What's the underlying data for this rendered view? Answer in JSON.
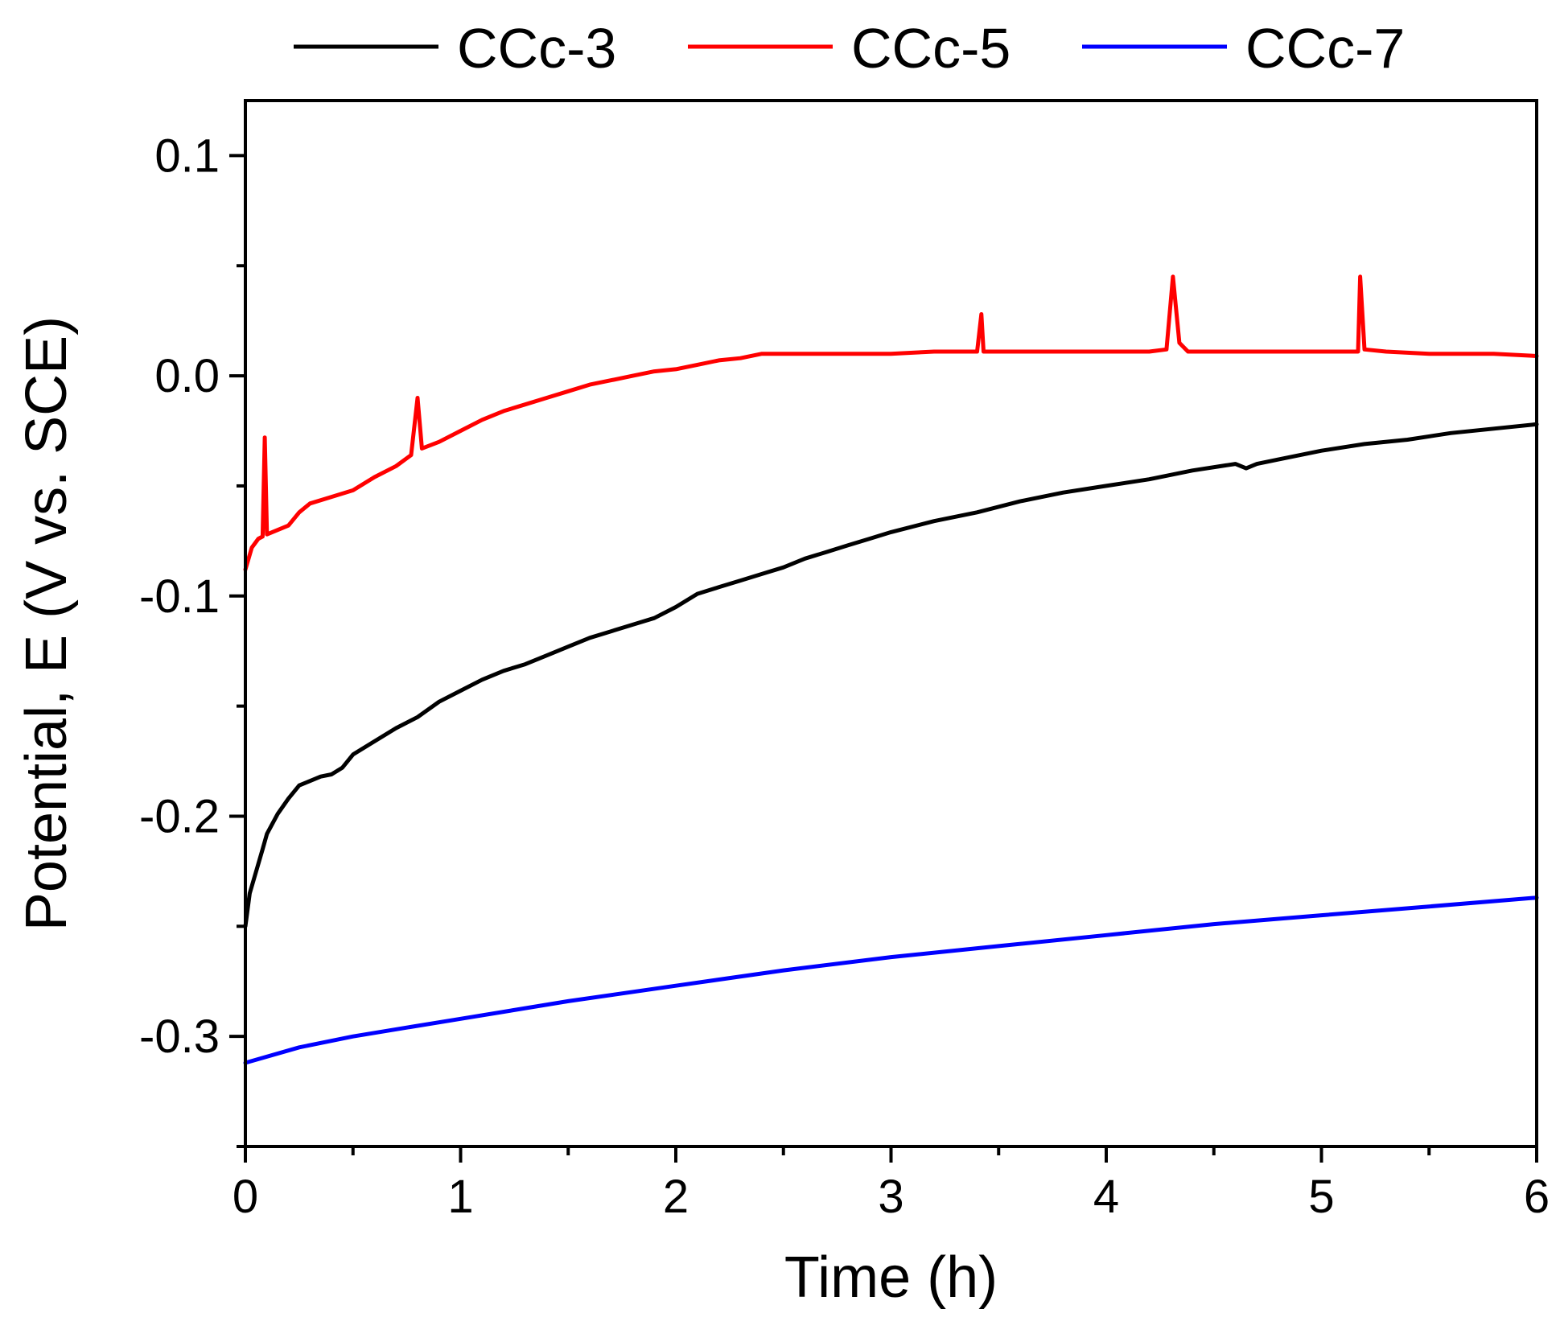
{
  "chart_data": {
    "type": "line",
    "xlabel": "Time (h)",
    "ylabel": "Potential, E (V vs. SCE)",
    "xlim": [
      0,
      6
    ],
    "ylim": [
      -0.35,
      0.125
    ],
    "xticks": [
      "0",
      "1",
      "2",
      "3",
      "4",
      "5",
      "6"
    ],
    "yticks": [
      "0.1",
      "0.0",
      "-0.1",
      "-0.2",
      "-0.3"
    ],
    "ytick_values": [
      0.1,
      0.0,
      -0.1,
      -0.2,
      -0.3
    ],
    "xtick_values": [
      0,
      1,
      2,
      3,
      4,
      5,
      6
    ],
    "grid": false,
    "legend_position": "top",
    "series": [
      {
        "name": "CCc-3",
        "color": "#000000",
        "x": [
          0.0,
          0.02,
          0.05,
          0.08,
          0.1,
          0.15,
          0.2,
          0.25,
          0.3,
          0.35,
          0.4,
          0.45,
          0.5,
          0.6,
          0.7,
          0.8,
          0.9,
          1.0,
          1.1,
          1.2,
          1.3,
          1.4,
          1.5,
          1.6,
          1.7,
          1.8,
          1.9,
          2.0,
          2.1,
          2.2,
          2.3,
          2.4,
          2.5,
          2.6,
          2.7,
          2.8,
          2.9,
          3.0,
          3.2,
          3.4,
          3.6,
          3.8,
          4.0,
          4.2,
          4.4,
          4.6,
          4.65,
          4.7,
          4.8,
          5.0,
          5.2,
          5.4,
          5.6,
          5.8,
          6.0
        ],
        "y": [
          -0.25,
          -0.235,
          -0.225,
          -0.215,
          -0.208,
          -0.199,
          -0.192,
          -0.186,
          -0.184,
          -0.182,
          -0.181,
          -0.178,
          -0.172,
          -0.166,
          -0.16,
          -0.155,
          -0.148,
          -0.143,
          -0.138,
          -0.134,
          -0.131,
          -0.127,
          -0.123,
          -0.119,
          -0.116,
          -0.113,
          -0.11,
          -0.105,
          -0.099,
          -0.096,
          -0.093,
          -0.09,
          -0.087,
          -0.083,
          -0.08,
          -0.077,
          -0.074,
          -0.071,
          -0.066,
          -0.062,
          -0.057,
          -0.053,
          -0.05,
          -0.047,
          -0.043,
          -0.04,
          -0.042,
          -0.04,
          -0.038,
          -0.034,
          -0.031,
          -0.029,
          -0.026,
          -0.024,
          -0.022
        ]
      },
      {
        "name": "CCc-5",
        "color": "#ff0000",
        "x": [
          0.0,
          0.03,
          0.06,
          0.08,
          0.09,
          0.1,
          0.15,
          0.2,
          0.25,
          0.3,
          0.4,
          0.5,
          0.6,
          0.7,
          0.77,
          0.8,
          0.82,
          0.9,
          1.0,
          1.1,
          1.2,
          1.3,
          1.4,
          1.5,
          1.6,
          1.7,
          1.8,
          1.9,
          2.0,
          2.1,
          2.2,
          2.3,
          2.4,
          2.5,
          2.7,
          3.0,
          3.2,
          3.4,
          3.42,
          3.43,
          3.45,
          3.6,
          3.8,
          4.0,
          4.2,
          4.28,
          4.31,
          4.34,
          4.38,
          4.5,
          4.8,
          5.1,
          5.17,
          5.18,
          5.2,
          5.3,
          5.5,
          5.8,
          6.0
        ],
        "y": [
          -0.088,
          -0.078,
          -0.074,
          -0.073,
          -0.028,
          -0.072,
          -0.07,
          -0.068,
          -0.062,
          -0.058,
          -0.055,
          -0.052,
          -0.046,
          -0.041,
          -0.036,
          -0.01,
          -0.033,
          -0.03,
          -0.025,
          -0.02,
          -0.016,
          -0.013,
          -0.01,
          -0.007,
          -0.004,
          -0.002,
          0.0,
          0.002,
          0.003,
          0.005,
          0.007,
          0.008,
          0.01,
          0.01,
          0.01,
          0.01,
          0.011,
          0.011,
          0.028,
          0.011,
          0.011,
          0.011,
          0.011,
          0.011,
          0.011,
          0.012,
          0.045,
          0.015,
          0.011,
          0.011,
          0.011,
          0.011,
          0.011,
          0.045,
          0.012,
          0.011,
          0.01,
          0.01,
          0.009
        ]
      },
      {
        "name": "CCc-7",
        "color": "#0000ff",
        "x": [
          0.0,
          0.25,
          0.5,
          0.75,
          1.0,
          1.5,
          2.0,
          2.5,
          3.0,
          3.5,
          4.0,
          4.5,
          5.0,
          5.5,
          6.0
        ],
        "y": [
          -0.312,
          -0.305,
          -0.3,
          -0.296,
          -0.292,
          -0.284,
          -0.277,
          -0.27,
          -0.264,
          -0.259,
          -0.254,
          -0.249,
          -0.245,
          -0.241,
          -0.237
        ]
      }
    ]
  }
}
